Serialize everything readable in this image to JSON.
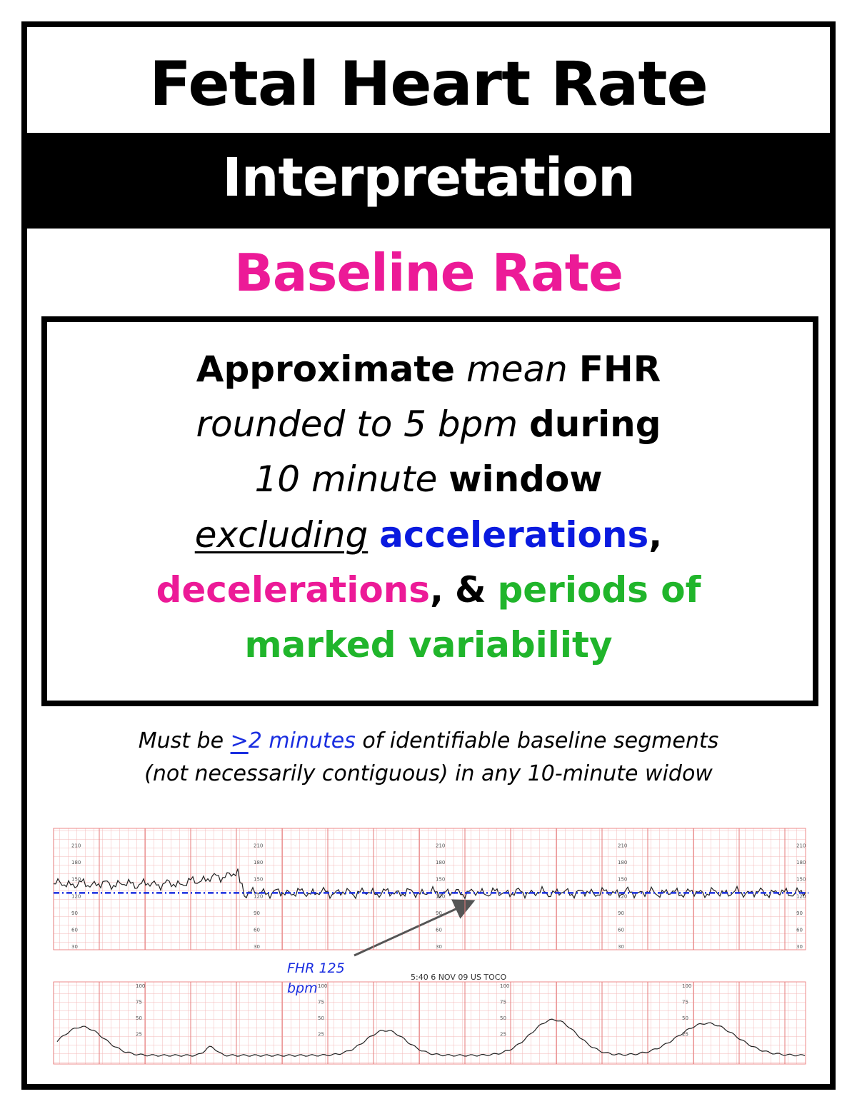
{
  "header": {
    "title": "Fetal Heart Rate",
    "subtitle": "Interpretation"
  },
  "section": {
    "heading": "Baseline Rate",
    "definition": {
      "lines": [
        [
          "Approximate",
          "mean",
          "FHR"
        ],
        [
          "rounded to 5 bpm",
          "during"
        ],
        [
          "10 minute",
          "window"
        ],
        [
          "excluding",
          "accelerations",
          ","
        ],
        [
          "decelerations",
          ",",
          "&",
          "periods of"
        ],
        [
          "marked variability"
        ]
      ]
    }
  },
  "note": {
    "lines": [
      [
        "Must be",
        ">",
        "2 minutes",
        "of identifiable baseline segments"
      ],
      [
        "(not necessarily contiguous) in any 10-minute widow"
      ]
    ]
  },
  "strip": {
    "annotation": [
      "FHR 125",
      "bpm"
    ],
    "toco_label": "5:40 6 NOV 09 US TOCO",
    "fhr_scale": [
      210,
      180,
      150,
      120,
      90,
      60,
      30
    ],
    "toco_scale": [
      100,
      75,
      50,
      25
    ]
  }
}
